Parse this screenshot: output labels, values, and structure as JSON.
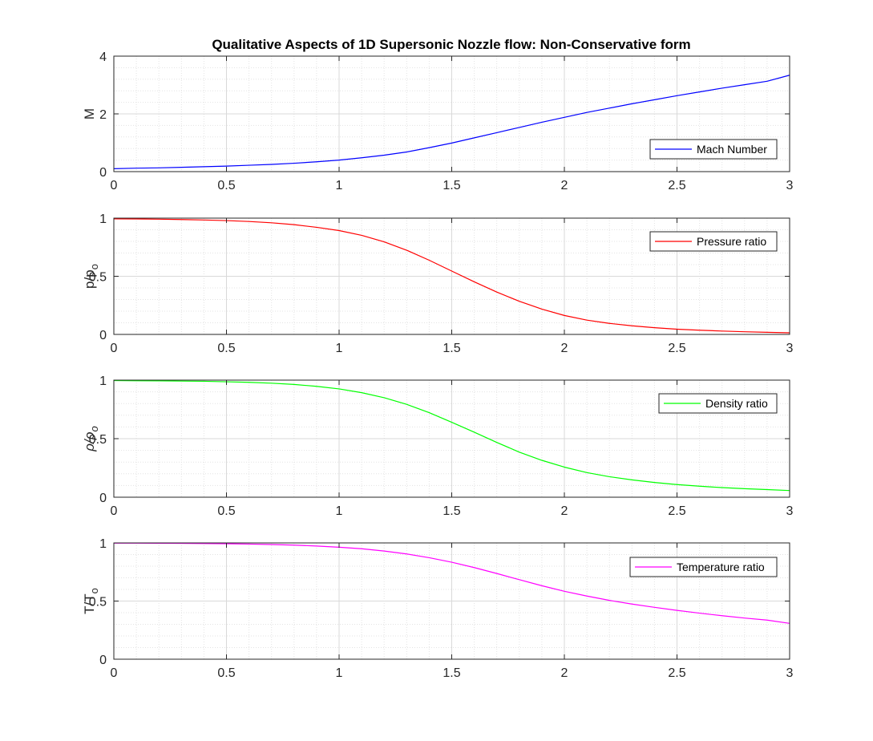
{
  "title": "Qualitative Aspects of 1D Supersonic Nozzle flow: Non-Conservative form",
  "chart_data": [
    {
      "type": "line",
      "ylabel": "M",
      "xlim": [
        0,
        3
      ],
      "ylim": [
        0,
        4
      ],
      "xticks": [
        0,
        0.5,
        1,
        1.5,
        2,
        2.5,
        3
      ],
      "xtick_labels": [
        "0",
        "0.5",
        "1",
        "1.5",
        "2",
        "2.5",
        "3"
      ],
      "yticks": [
        0,
        2,
        4
      ],
      "ytick_labels": [
        "0",
        "2",
        "4"
      ],
      "grid": true,
      "minor_grid": true,
      "legend_position": "lower-right",
      "x": [
        0,
        0.1,
        0.2,
        0.3,
        0.4,
        0.5,
        0.6,
        0.7,
        0.8,
        0.9,
        1.0,
        1.1,
        1.2,
        1.3,
        1.4,
        1.5,
        1.6,
        1.7,
        1.8,
        1.9,
        2.0,
        2.1,
        2.2,
        2.3,
        2.4,
        2.5,
        2.6,
        2.7,
        2.8,
        2.9,
        3.0
      ],
      "series": [
        {
          "name": "Mach Number",
          "color": "#0000ff",
          "values": [
            0.1,
            0.12,
            0.13,
            0.15,
            0.17,
            0.19,
            0.22,
            0.25,
            0.29,
            0.34,
            0.4,
            0.48,
            0.57,
            0.68,
            0.83,
            0.99,
            1.17,
            1.35,
            1.53,
            1.71,
            1.88,
            2.05,
            2.2,
            2.35,
            2.49,
            2.63,
            2.76,
            2.89,
            3.01,
            3.13,
            3.34
          ]
        }
      ]
    },
    {
      "type": "line",
      "ylabel": "p/p",
      "ylabel_sub": "o",
      "xlim": [
        0,
        3
      ],
      "ylim": [
        0,
        1
      ],
      "xticks": [
        0,
        0.5,
        1,
        1.5,
        2,
        2.5,
        3
      ],
      "xtick_labels": [
        "0",
        "0.5",
        "1",
        "1.5",
        "2",
        "2.5",
        "3"
      ],
      "yticks": [
        0,
        0.5,
        1
      ],
      "ytick_labels": [
        "0",
        "0.5",
        "1"
      ],
      "grid": true,
      "minor_grid": true,
      "legend_position": "top-right",
      "x": [
        0,
        0.1,
        0.2,
        0.3,
        0.4,
        0.5,
        0.6,
        0.7,
        0.8,
        0.9,
        1.0,
        1.1,
        1.2,
        1.3,
        1.4,
        1.5,
        1.6,
        1.7,
        1.8,
        1.9,
        2.0,
        2.1,
        2.2,
        2.3,
        2.4,
        2.5,
        2.6,
        2.7,
        2.8,
        2.9,
        3.0
      ],
      "series": [
        {
          "name": "Pressure ratio",
          "color": "#ff0000",
          "values": [
            0.994,
            0.993,
            0.991,
            0.988,
            0.984,
            0.979,
            0.971,
            0.96,
            0.944,
            0.921,
            0.893,
            0.852,
            0.796,
            0.724,
            0.638,
            0.545,
            0.452,
            0.364,
            0.285,
            0.218,
            0.163,
            0.123,
            0.095,
            0.074,
            0.058,
            0.045,
            0.036,
            0.029,
            0.023,
            0.018,
            0.014
          ]
        }
      ]
    },
    {
      "type": "line",
      "ylabel": "ρ/ρ",
      "ylabel_sub": "o",
      "xlim": [
        0,
        3
      ],
      "ylim": [
        0,
        1
      ],
      "xticks": [
        0,
        0.5,
        1,
        1.5,
        2,
        2.5,
        3
      ],
      "xtick_labels": [
        "0",
        "0.5",
        "1",
        "1.5",
        "2",
        "2.5",
        "3"
      ],
      "yticks": [
        0,
        0.5,
        1
      ],
      "ytick_labels": [
        "0",
        "0.5",
        "1"
      ],
      "grid": true,
      "minor_grid": true,
      "legend_position": "top-right",
      "x": [
        0,
        0.1,
        0.2,
        0.3,
        0.4,
        0.5,
        0.6,
        0.7,
        0.8,
        0.9,
        1.0,
        1.1,
        1.2,
        1.3,
        1.4,
        1.5,
        1.6,
        1.7,
        1.8,
        1.9,
        2.0,
        2.1,
        2.2,
        2.3,
        2.4,
        2.5,
        2.6,
        2.7,
        2.8,
        2.9,
        3.0
      ],
      "series": [
        {
          "name": "Density ratio",
          "color": "#00ff00",
          "values": [
            0.996,
            0.995,
            0.994,
            0.992,
            0.99,
            0.986,
            0.981,
            0.974,
            0.963,
            0.947,
            0.925,
            0.893,
            0.85,
            0.793,
            0.722,
            0.64,
            0.555,
            0.468,
            0.385,
            0.315,
            0.257,
            0.21,
            0.175,
            0.148,
            0.126,
            0.108,
            0.094,
            0.082,
            0.073,
            0.065,
            0.057
          ]
        }
      ]
    },
    {
      "type": "line",
      "ylabel": "T/T",
      "ylabel_sub": "o",
      "xlim": [
        0,
        3
      ],
      "ylim": [
        0,
        1
      ],
      "xticks": [
        0,
        0.5,
        1,
        1.5,
        2,
        2.5,
        3
      ],
      "xtick_labels": [
        "0",
        "0.5",
        "1",
        "1.5",
        "2",
        "2.5",
        "3"
      ],
      "yticks": [
        0,
        0.5,
        1
      ],
      "ytick_labels": [
        "0",
        "0.5",
        "1"
      ],
      "grid": true,
      "minor_grid": true,
      "legend_position": "top-right",
      "x": [
        0,
        0.1,
        0.2,
        0.3,
        0.4,
        0.5,
        0.6,
        0.7,
        0.8,
        0.9,
        1.0,
        1.1,
        1.2,
        1.3,
        1.4,
        1.5,
        1.6,
        1.7,
        1.8,
        1.9,
        2.0,
        2.1,
        2.2,
        2.3,
        2.4,
        2.5,
        2.6,
        2.7,
        2.8,
        2.9,
        3.0
      ],
      "series": [
        {
          "name": "Temperature ratio",
          "color": "#ff00ff",
          "values": [
            0.998,
            0.998,
            0.997,
            0.996,
            0.995,
            0.993,
            0.99,
            0.986,
            0.981,
            0.973,
            0.963,
            0.95,
            0.93,
            0.905,
            0.873,
            0.834,
            0.788,
            0.737,
            0.684,
            0.632,
            0.584,
            0.543,
            0.506,
            0.474,
            0.446,
            0.42,
            0.396,
            0.374,
            0.354,
            0.336,
            0.308
          ]
        }
      ]
    }
  ]
}
